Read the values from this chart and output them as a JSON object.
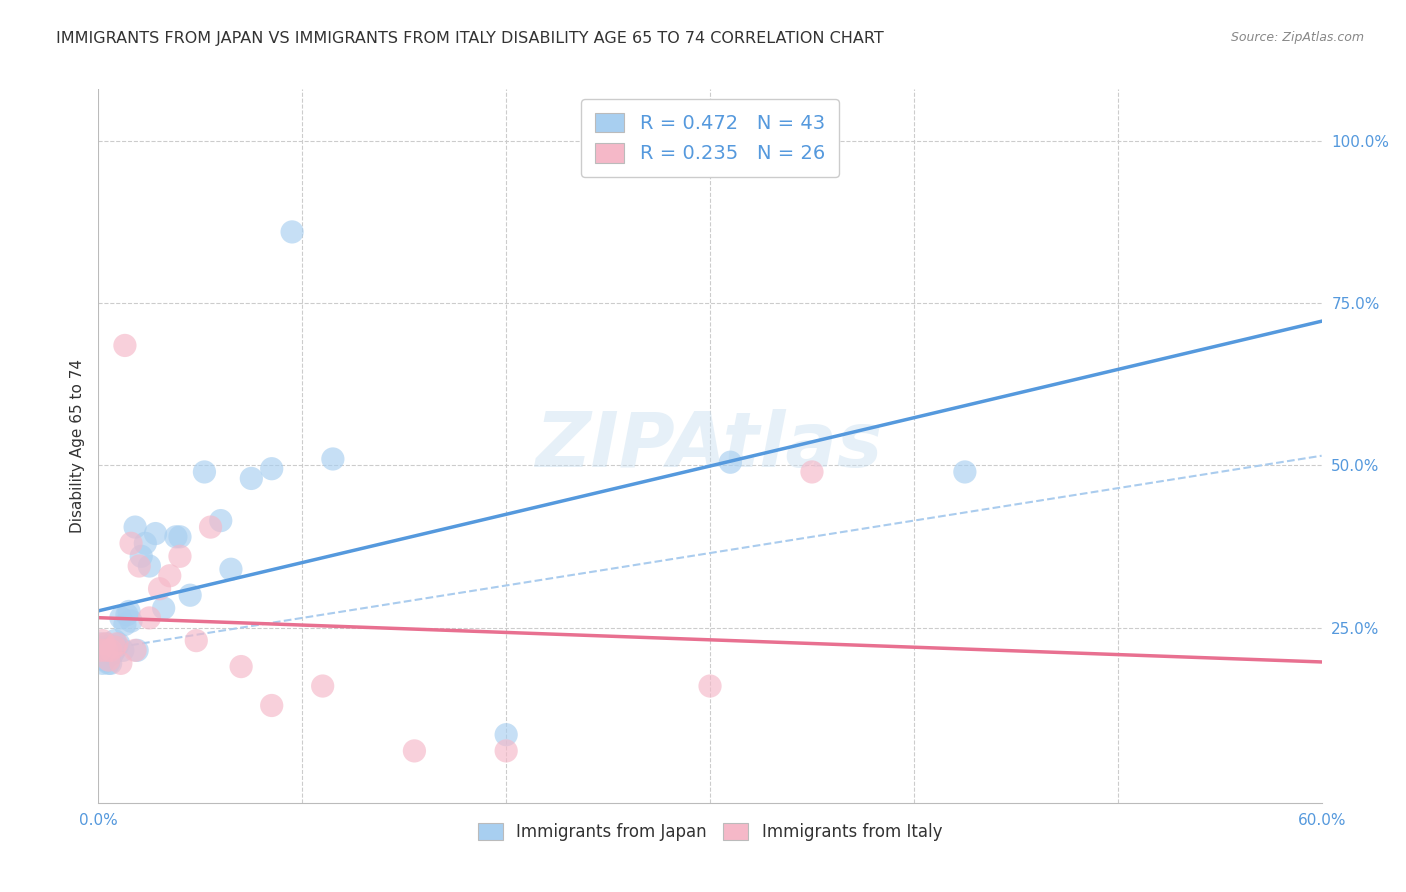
{
  "title": "IMMIGRANTS FROM JAPAN VS IMMIGRANTS FROM ITALY DISABILITY AGE 65 TO 74 CORRELATION CHART",
  "source": "Source: ZipAtlas.com",
  "ylabel": "Disability Age 65 to 74",
  "xlim": [
    0.0,
    0.6
  ],
  "ylim": [
    -0.02,
    1.08
  ],
  "r_japan": 0.472,
  "n_japan": 43,
  "r_italy": 0.235,
  "n_italy": 26,
  "color_japan": "#a8cff0",
  "color_italy": "#f5b8c8",
  "color_japan_line": "#5599dd",
  "color_italy_line": "#e87090",
  "color_dashed_line": "#aaccee",
  "watermark": "ZIPAtlas",
  "japan_x": [
    0.001,
    0.001,
    0.002,
    0.002,
    0.003,
    0.003,
    0.004,
    0.004,
    0.005,
    0.005,
    0.006,
    0.007,
    0.007,
    0.008,
    0.008,
    0.009,
    0.01,
    0.011,
    0.012,
    0.013,
    0.014,
    0.015,
    0.016,
    0.018,
    0.019,
    0.021,
    0.023,
    0.025,
    0.028,
    0.032,
    0.038,
    0.04,
    0.045,
    0.052,
    0.06,
    0.065,
    0.075,
    0.085,
    0.095,
    0.115,
    0.2,
    0.31,
    0.425
  ],
  "japan_y": [
    0.215,
    0.225,
    0.195,
    0.215,
    0.2,
    0.22,
    0.215,
    0.225,
    0.195,
    0.215,
    0.195,
    0.21,
    0.22,
    0.215,
    0.23,
    0.22,
    0.225,
    0.265,
    0.215,
    0.255,
    0.27,
    0.275,
    0.26,
    0.405,
    0.215,
    0.36,
    0.38,
    0.345,
    0.395,
    0.28,
    0.39,
    0.39,
    0.3,
    0.49,
    0.415,
    0.34,
    0.48,
    0.495,
    0.86,
    0.51,
    0.085,
    0.505,
    0.49
  ],
  "italy_x": [
    0.001,
    0.002,
    0.003,
    0.004,
    0.005,
    0.006,
    0.008,
    0.009,
    0.011,
    0.013,
    0.016,
    0.018,
    0.02,
    0.025,
    0.03,
    0.035,
    0.04,
    0.048,
    0.055,
    0.07,
    0.085,
    0.11,
    0.155,
    0.2,
    0.3,
    0.35
  ],
  "italy_y": [
    0.215,
    0.23,
    0.225,
    0.215,
    0.2,
    0.215,
    0.22,
    0.225,
    0.195,
    0.685,
    0.38,
    0.215,
    0.345,
    0.265,
    0.31,
    0.33,
    0.36,
    0.23,
    0.405,
    0.19,
    0.13,
    0.16,
    0.06,
    0.06,
    0.16,
    0.49
  ],
  "background_color": "#ffffff",
  "grid_color": "#cccccc",
  "title_fontsize": 11.5,
  "axis_label_fontsize": 11,
  "tick_fontsize": 11,
  "legend_fontsize": 14
}
